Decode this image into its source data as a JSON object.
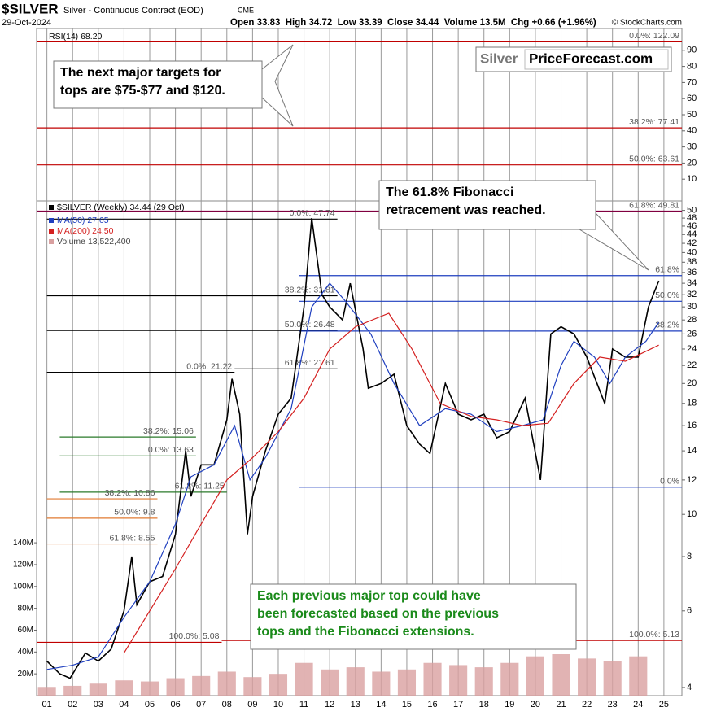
{
  "header": {
    "ticker": "$SILVER",
    "description": "Silver - Continuous Contract (EOD)",
    "exchange": "CME",
    "copyright": "© StockCharts.com",
    "date": "29-Oct-2024",
    "quote": "Open 33.83  High 34.72  Low 33.39  Close 34.44  Volume 13.5M  Chg +0.66 (+1.96%)"
  },
  "chart_data": {
    "type": "line",
    "log_scale": true,
    "grid": "x",
    "xlim": [
      2000.6,
      2025.7
    ],
    "xticks": [
      {
        "value": 2001,
        "label": "01"
      },
      {
        "value": 2002,
        "label": "02"
      },
      {
        "value": 2003,
        "label": "03"
      },
      {
        "value": 2004,
        "label": "04"
      },
      {
        "value": 2005,
        "label": "05"
      },
      {
        "value": 2006,
        "label": "06"
      },
      {
        "value": 2007,
        "label": "07"
      },
      {
        "value": 2008,
        "label": "08"
      },
      {
        "value": 2009,
        "label": "09"
      },
      {
        "value": 2010,
        "label": "10"
      },
      {
        "value": 2011,
        "label": "11"
      },
      {
        "value": 2012,
        "label": "12"
      },
      {
        "value": 2013,
        "label": "13"
      },
      {
        "value": 2014,
        "label": "14"
      },
      {
        "value": 2015,
        "label": "15"
      },
      {
        "value": 2016,
        "label": "16"
      },
      {
        "value": 2017,
        "label": "17"
      },
      {
        "value": 2018,
        "label": "18"
      },
      {
        "value": 2019,
        "label": "19"
      },
      {
        "value": 2020,
        "label": "20"
      },
      {
        "value": 2021,
        "label": "21"
      },
      {
        "value": 2022,
        "label": "22"
      },
      {
        "value": 2023,
        "label": "23"
      },
      {
        "value": 2024,
        "label": "24"
      },
      {
        "value": 2025,
        "label": "25"
      }
    ],
    "ylim": [
      3.83,
      131
    ],
    "yticks": [
      4,
      6,
      8,
      10,
      12,
      14,
      16,
      18,
      20,
      22,
      24,
      26,
      28,
      30,
      32,
      34,
      36,
      38,
      40,
      42,
      44,
      46,
      48,
      50
    ],
    "y2lim": [
      0,
      611000000
    ],
    "y2ticks": [
      {
        "value": 20000000,
        "label": "20M"
      },
      {
        "value": 40000000,
        "label": "40M"
      },
      {
        "value": 60000000,
        "label": "60M"
      },
      {
        "value": 80000000,
        "label": "80M"
      },
      {
        "value": 100000000,
        "label": "100M"
      },
      {
        "value": 120000000,
        "label": "120M"
      },
      {
        "value": 140000000,
        "label": "140M"
      }
    ],
    "rsi": {
      "label": "RSI(14) 68.20",
      "ylim": [
        0,
        100
      ],
      "yticks": [
        10,
        20,
        30,
        40,
        50,
        60,
        70,
        80,
        90
      ]
    },
    "series": [
      {
        "name": "$SILVER (Weekly) 34.44 (29 Oct)",
        "color": "#000000",
        "x": [
          2001.0,
          2001.5,
          2001.9,
          2002.5,
          2003.0,
          2003.5,
          2004.0,
          2004.3,
          2004.5,
          2005.0,
          2005.5,
          2006.0,
          2006.4,
          2006.6,
          2007.0,
          2007.5,
          2008.0,
          2008.2,
          2008.5,
          2008.8,
          2009.0,
          2009.5,
          2010.0,
          2010.5,
          2011.0,
          2011.3,
          2011.7,
          2012.0,
          2012.5,
          2012.8,
          2013.3,
          2013.5,
          2014.0,
          2014.5,
          2015.0,
          2015.5,
          2015.9,
          2016.5,
          2017.0,
          2017.5,
          2018.0,
          2018.5,
          2019.0,
          2019.6,
          2020.2,
          2020.6,
          2021.0,
          2021.5,
          2022.0,
          2022.7,
          2023.0,
          2023.5,
          2024.0,
          2024.4,
          2024.8
        ],
        "values": [
          4.6,
          4.3,
          4.2,
          4.8,
          4.6,
          4.9,
          6.0,
          8.0,
          6.2,
          7.0,
          7.2,
          9.0,
          14.0,
          11.0,
          13.0,
          13.0,
          16.5,
          20.5,
          17.0,
          9.0,
          11.0,
          14.0,
          17.0,
          18.5,
          30.0,
          48.0,
          32.0,
          30.0,
          28.0,
          34.0,
          24.0,
          19.5,
          20.0,
          21.0,
          16.0,
          14.5,
          13.8,
          20.0,
          17.0,
          16.5,
          17.0,
          15.0,
          15.5,
          18.5,
          12.0,
          26.0,
          27.0,
          26.0,
          23.0,
          18.0,
          24.0,
          23.0,
          23.0,
          30.0,
          34.44
        ]
      },
      {
        "name": "MA(50) 27.65",
        "color": "#1f3fbf",
        "x": [
          2001.0,
          2002.0,
          2003.0,
          2004.0,
          2005.0,
          2006.0,
          2006.6,
          2007.5,
          2008.3,
          2008.9,
          2009.5,
          2010.5,
          2011.3,
          2012.0,
          2012.6,
          2013.6,
          2014.5,
          2015.5,
          2016.5,
          2017.5,
          2018.5,
          2019.5,
          2020.3,
          2021.0,
          2021.5,
          2022.3,
          2022.9,
          2023.5,
          2024.3,
          2024.8
        ],
        "values": [
          4.4,
          4.5,
          4.7,
          5.8,
          7.0,
          9.5,
          12.2,
          13.0,
          16.0,
          12.0,
          13.5,
          17.5,
          30.0,
          34.0,
          31.0,
          26.0,
          20.0,
          16.0,
          17.5,
          17.0,
          15.5,
          16.0,
          16.5,
          22.0,
          25.0,
          23.0,
          20.0,
          23.0,
          25.0,
          27.65
        ]
      },
      {
        "name": "MA(200) 24.50",
        "color": "#d42020",
        "x": [
          2004.0,
          2005.0,
          2006.0,
          2007.0,
          2008.0,
          2009.0,
          2010.0,
          2011.0,
          2012.0,
          2013.0,
          2014.3,
          2015.2,
          2016.3,
          2017.5,
          2018.5,
          2019.5,
          2020.5,
          2021.5,
          2022.5,
          2023.5,
          2024.8
        ],
        "values": [
          4.8,
          6.0,
          7.5,
          9.5,
          12.0,
          13.5,
          15.5,
          18.5,
          24.0,
          27.0,
          29.0,
          24.0,
          18.0,
          16.8,
          16.5,
          16.0,
          16.2,
          20.0,
          23.0,
          22.5,
          24.5
        ]
      },
      {
        "name": "Volume 13,522,400",
        "color": "#d9a0a0",
        "axis": "y2",
        "x": [
          2001,
          2002,
          2003,
          2004,
          2005,
          2006,
          2007,
          2008,
          2009,
          2010,
          2011,
          2012,
          2013,
          2014,
          2015,
          2016,
          2017,
          2018,
          2019,
          2020,
          2021,
          2022,
          2023,
          2024
        ],
        "values": [
          8000000,
          9000000,
          11000000,
          14000000,
          13000000,
          16000000,
          18000000,
          22000000,
          17000000,
          20000000,
          30000000,
          24000000,
          26000000,
          22000000,
          24000000,
          30000000,
          28000000,
          26000000,
          30000000,
          36000000,
          38000000,
          34000000,
          32000000,
          36000000
        ]
      }
    ],
    "fib_lines": [
      {
        "label": "0.0%: 122.09",
        "value": 122.09,
        "color": "#c00000",
        "from": 2000.6,
        "to": 2025.7
      },
      {
        "label": "38.2%: 77.41",
        "value": 77.41,
        "color": "#c00000",
        "from": 2000.6,
        "to": 2025.7
      },
      {
        "label": "50.0%: 63.61",
        "value": 63.61,
        "color": "#c00000",
        "from": 2000.6,
        "to": 2025.7
      },
      {
        "label": "61.8%: 49.81",
        "value": 49.81,
        "color": "#800040",
        "from": 2000.6,
        "to": 2025.7
      },
      {
        "label": "0.0%: 47.74",
        "value": 47.74,
        "color": "#000000",
        "from": 2001.0,
        "to": 2012.3
      },
      {
        "label": "38.2%: 31.81",
        "value": 31.81,
        "color": "#000000",
        "from": 2001.0,
        "to": 2012.3
      },
      {
        "label": "50.0%: 26.48",
        "value": 26.48,
        "color": "#000000",
        "from": 2001.0,
        "to": 2012.3
      },
      {
        "label": "61.8%: 21.61",
        "value": 21.61,
        "color": "#000000",
        "from": 2008.3,
        "to": 2012.3
      },
      {
        "label": "0.0%: 21.22",
        "value": 21.22,
        "color": "#000000",
        "from": 2001.0,
        "to": 2008.3
      },
      {
        "label": "61.8%",
        "value": 35.4,
        "color": "#1f3fbf",
        "from": 2010.8,
        "to": 2025.7
      },
      {
        "label": "50.0%",
        "value": 30.9,
        "color": "#1f3fbf",
        "from": 2010.8,
        "to": 2025.7
      },
      {
        "label": "38.2%",
        "value": 26.4,
        "color": "#1f3fbf",
        "from": 2010.8,
        "to": 2025.7
      },
      {
        "label": "0.0%",
        "value": 11.55,
        "color": "#1f3fbf",
        "from": 2010.8,
        "to": 2025.7
      },
      {
        "label": "38.2%: 15.06",
        "value": 15.06,
        "color": "#2a7a2a",
        "from": 2001.5,
        "to": 2006.8
      },
      {
        "label": "0.0%: 13.63",
        "value": 13.63,
        "color": "#2a7a2a",
        "from": 2001.5,
        "to": 2006.8
      },
      {
        "label": "61.8%: 11.25",
        "value": 11.25,
        "color": "#2a7a2a",
        "from": 2001.5,
        "to": 2008.0
      },
      {
        "label": "38.2%: 10.86",
        "value": 10.86,
        "color": "#e07a30",
        "from": 2001.0,
        "to": 2005.3
      },
      {
        "label": "50.0%: 9.8",
        "value": 9.8,
        "color": "#e07a30",
        "from": 2001.0,
        "to": 2005.3
      },
      {
        "label": "61.8%: 8.55",
        "value": 8.55,
        "color": "#e07a30",
        "from": 2001.0,
        "to": 2005.3
      },
      {
        "label": "100.0%: 5.08",
        "value": 5.08,
        "color": "#c00000",
        "from": 2000.6,
        "to": 2007.8
      },
      {
        "label": "100.0%: 5.13",
        "value": 5.13,
        "color": "#c00000",
        "from": 2007.8,
        "to": 2025.7
      }
    ]
  },
  "annotations": [
    {
      "lines": [
        "The next major targets for",
        "tops are $75-$77 and $120."
      ],
      "color": "#000000"
    },
    {
      "lines": [
        "The 61.8% Fibonacci",
        "retracement was reached."
      ],
      "color": "#000000"
    },
    {
      "lines": [
        "Each previous major top could have",
        "been forecasted based on the previous",
        "tops and the Fibonacci extensions."
      ],
      "color": "#1a8a1a"
    }
  ],
  "logo": {
    "left": "Silver",
    "right": "PriceForecast.com"
  }
}
